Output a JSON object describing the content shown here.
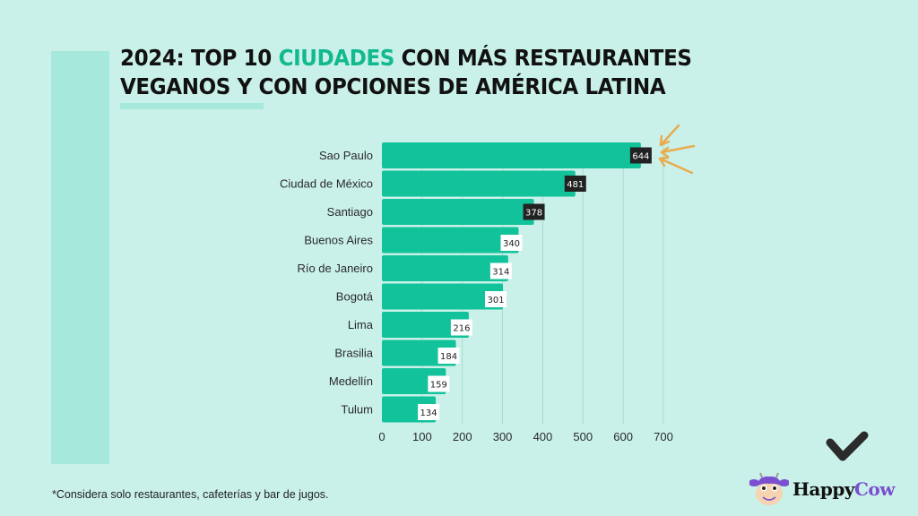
{
  "title": {
    "prefix": "2024: TOP 10 ",
    "highlight": "CIUDADES",
    "suffix_line1": " CON MÁS RESTAURANTES",
    "line2": "VEGANOS Y CON OPCIONES DE AMÉRICA LATINA"
  },
  "colors": {
    "background": "#c9f1e9",
    "panel": "#a6e8dc",
    "bar": "#12c29a",
    "highlight_text": "#12b98f",
    "dark_label_bg": "#222222",
    "arrow": "#e8ac4e",
    "brand_purple": "#7a4fd0"
  },
  "chart_data": {
    "type": "bar",
    "orientation": "horizontal",
    "title": "2024: TOP 10 CIUDADES CON MÁS RESTAURANTES VEGANOS Y CON OPCIONES DE AMÉRICA LATINA",
    "categories": [
      "Sao Paulo",
      "Ciudad de México",
      "Santiago",
      "Buenos Aires",
      "Río de Janeiro",
      "Bogotá",
      "Lima",
      "Brasilia",
      "Medellín",
      "Tulum"
    ],
    "values": [
      644,
      481,
      378,
      340,
      314,
      301,
      216,
      184,
      159,
      134
    ],
    "dark_labels": [
      true,
      true,
      true,
      false,
      false,
      false,
      false,
      false,
      false,
      false
    ],
    "xticks": [
      0,
      100,
      200,
      300,
      400,
      500,
      600,
      700
    ],
    "xlim": [
      0,
      700
    ],
    "xlabel": "",
    "ylabel": "",
    "grid": true,
    "annotation": "arrows pointing to Sao Paulo value"
  },
  "footnote": "*Considera solo restaurantes, cafeterías y bar de jugos.",
  "logo": {
    "word1": "Happy",
    "word2": "Cow"
  }
}
